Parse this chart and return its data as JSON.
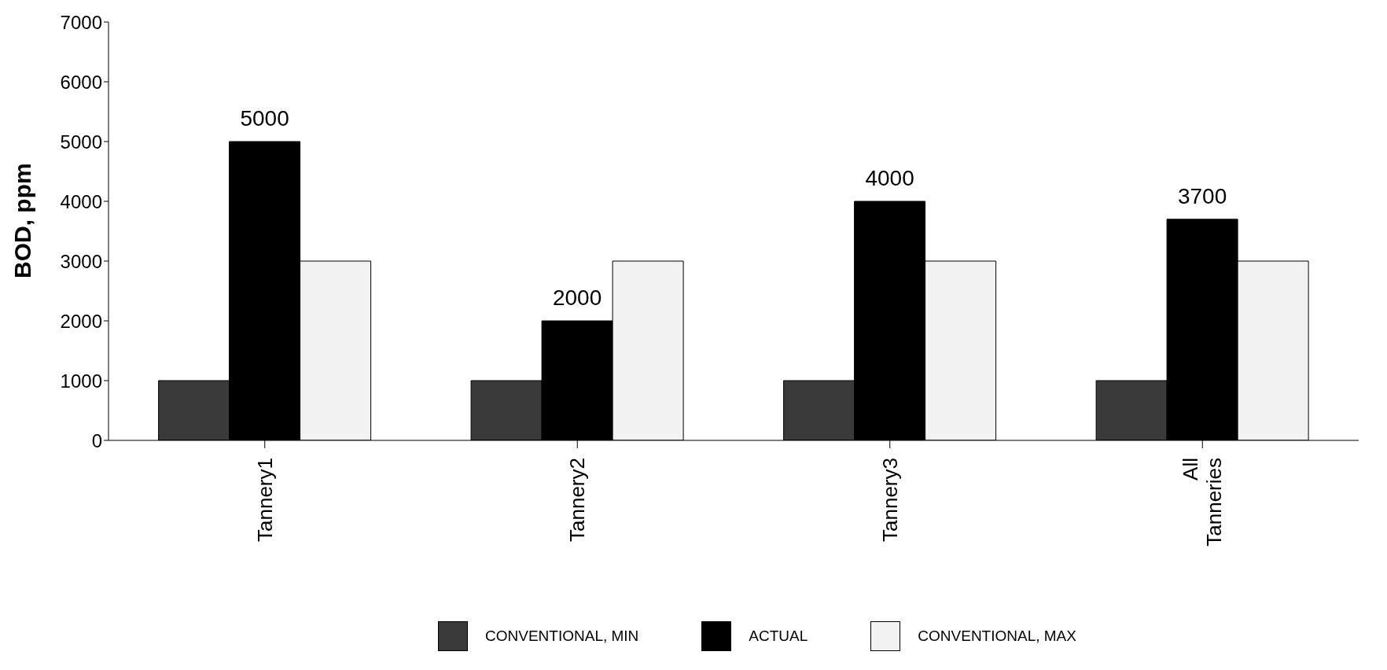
{
  "chart_data": {
    "type": "bar",
    "ylabel": "BOD, ppm",
    "categories": [
      "Tannery1",
      "Tannery2",
      "Tannery3",
      "All Tanneries"
    ],
    "series": [
      {
        "name": "CONVENTIONAL, MIN",
        "color": "#3a3a3a",
        "values": [
          1000,
          1000,
          1000,
          1000
        ]
      },
      {
        "name": "ACTUAL",
        "color": "#000000",
        "values": [
          5000,
          2000,
          4000,
          3700
        ],
        "value_labels": [
          "5000",
          "2000",
          "4000",
          "3700"
        ]
      },
      {
        "name": "CONVENTIONAL, MAX",
        "color": "#f2f2f2",
        "values": [
          3000,
          3000,
          3000,
          3000
        ]
      }
    ],
    "ylim": [
      0,
      7000
    ],
    "yticks": [
      0,
      1000,
      2000,
      3000,
      4000,
      5000,
      6000,
      7000
    ],
    "grid": false,
    "legend": "bottom"
  }
}
